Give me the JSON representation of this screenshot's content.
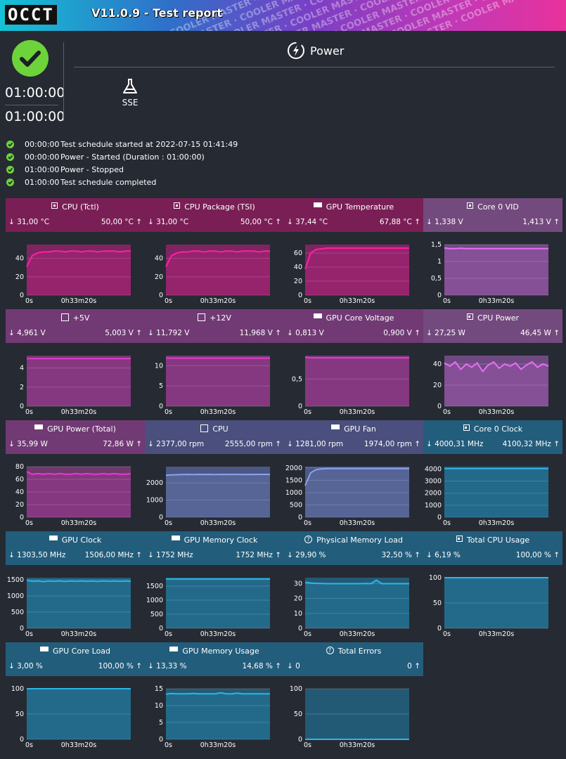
{
  "header": {
    "logo": "OCCT",
    "version": "V11.0.9 - Test report",
    "watermark": "COOLER MASTER"
  },
  "summary": {
    "elapsed_time": "01:00:00",
    "total_time": "01:00:00",
    "test_name": "Power",
    "instruction_set": "SSE",
    "status_color": "#6cd33a"
  },
  "log": [
    {
      "time": "00:00:00",
      "message": "Test schedule started at 2022-07-15 01:41:49"
    },
    {
      "time": "00:00:00",
      "message": "Power - Started (Duration : 01:00:00)"
    },
    {
      "time": "01:00:00",
      "message": "Power - Stopped"
    },
    {
      "time": "01:00:00",
      "message": "Test schedule completed"
    }
  ],
  "colors": {
    "magenta_header": "#7a1f55",
    "magenta_values": "#6e1c4f",
    "magenta_chart": "#7e2561",
    "magenta_line": "#ff1fa8",
    "violet_header": "#734a7e",
    "violet_values": "#6b4377",
    "violet_chart": "#6f4a82",
    "violet_line": "#e86ff5",
    "purple_header": "#713a74",
    "purple_chart": "#71386f",
    "purple_line": "#e33bcf",
    "slate_header": "#4a4f7d",
    "slate_chart": "#4c5784",
    "slate_line": "#8aa3ea",
    "teal_header": "#235d7c",
    "teal_chart": "#225a76",
    "teal_line": "#2ab6e8"
  },
  "sensors": [
    {
      "name": "CPU (Tctl)",
      "icon": "cpu-icon",
      "min": "31,00 °C",
      "max": "50,00 °C",
      "theme": "magenta",
      "chart_data": {
        "type": "line",
        "xlabel": "time",
        "x_ticks": [
          "0s",
          "0h33m20s"
        ],
        "y_ticks": [
          "0",
          "20",
          "40"
        ],
        "ylim": [
          0,
          55
        ],
        "series": [
          {
            "name": "CPU (Tctl)",
            "values": [
              31,
              43,
              46,
              47,
              47,
              48,
              48,
              47,
              48,
              48,
              47,
              48,
              48,
              47,
              48,
              48,
              48,
              47,
              48,
              48
            ]
          }
        ]
      }
    },
    {
      "name": "CPU Package (TSI)",
      "icon": "cpu-icon",
      "min": "31,00 °C",
      "max": "50,00 °C",
      "theme": "magenta",
      "chart_data": {
        "type": "line",
        "xlabel": "time",
        "x_ticks": [
          "0s",
          "0h33m20s"
        ],
        "y_ticks": [
          "0",
          "20",
          "40"
        ],
        "ylim": [
          0,
          55
        ],
        "series": [
          {
            "name": "CPU Package (TSI)",
            "values": [
              31,
              43,
              46,
              47,
              47,
              48,
              48,
              47,
              48,
              48,
              47,
              48,
              48,
              47,
              48,
              48,
              48,
              47,
              48,
              48
            ]
          }
        ]
      }
    },
    {
      "name": "GPU Temperature",
      "icon": "gpu-icon",
      "min": "37,44 °C",
      "max": "67,88 °C",
      "theme": "magenta",
      "chart_data": {
        "type": "line",
        "xlabel": "time",
        "x_ticks": [
          "0s",
          "0h33m20s"
        ],
        "y_ticks": [
          "0",
          "20",
          "40",
          "60"
        ],
        "ylim": [
          0,
          72
        ],
        "series": [
          {
            "name": "GPU Temperature",
            "values": [
              37,
              60,
              65,
              66,
              67,
              67,
              67,
              67,
              67,
              67,
              67,
              67,
              67,
              67,
              67,
              67,
              67,
              67,
              67,
              67
            ]
          }
        ]
      }
    },
    {
      "name": "Core 0 VID",
      "icon": "cpu-icon",
      "min": "1,338 V",
      "max": "1,413 V",
      "theme": "violet",
      "chart_data": {
        "type": "line",
        "xlabel": "time",
        "x_ticks": [
          "0s",
          "0h33m20s"
        ],
        "y_ticks": [
          "0",
          "0,5",
          "1",
          "1,5"
        ],
        "ylim": [
          0,
          1.5
        ],
        "series": [
          {
            "name": "Core 0 VID",
            "values": [
              1.4,
              1.38,
              1.38,
              1.39,
              1.38,
              1.38,
              1.38,
              1.38,
              1.38,
              1.38,
              1.38,
              1.38,
              1.38,
              1.38,
              1.38,
              1.38,
              1.38,
              1.38,
              1.38,
              1.38
            ]
          }
        ]
      }
    },
    {
      "name": "+5V",
      "icon": "chip-icon",
      "min": "4,961 V",
      "max": "5,003 V",
      "theme": "purple",
      "chart_data": {
        "type": "line",
        "xlabel": "time",
        "x_ticks": [
          "0s",
          "0h33m20s"
        ],
        "y_ticks": [
          "0",
          "2",
          "4"
        ],
        "ylim": [
          0,
          5.3
        ],
        "series": [
          {
            "name": "+5V",
            "values": [
              4.99,
              4.98,
              4.98,
              4.98,
              4.98,
              4.98,
              4.98,
              4.98,
              4.98,
              4.98,
              4.98,
              4.98,
              4.98,
              4.98,
              4.98,
              4.98,
              4.98,
              4.98,
              4.98,
              4.98
            ]
          }
        ]
      }
    },
    {
      "name": "+12V",
      "icon": "chip-icon",
      "min": "11,792 V",
      "max": "11,968 V",
      "theme": "purple",
      "chart_data": {
        "type": "line",
        "xlabel": "time",
        "x_ticks": [
          "0s",
          "0h33m20s"
        ],
        "y_ticks": [
          "0",
          "5",
          "10"
        ],
        "ylim": [
          0,
          12.5
        ],
        "series": [
          {
            "name": "+12V",
            "values": [
              11.9,
              11.88,
              11.88,
              11.88,
              11.88,
              11.88,
              11.88,
              11.88,
              11.88,
              11.88,
              11.88,
              11.88,
              11.88,
              11.88,
              11.88,
              11.88,
              11.88,
              11.88,
              11.88,
              11.88
            ]
          }
        ]
      }
    },
    {
      "name": "GPU Core Voltage",
      "icon": "gpu-icon",
      "min": "0,813 V",
      "max": "0,900 V",
      "theme": "purple",
      "chart_data": {
        "type": "line",
        "xlabel": "time",
        "x_ticks": [
          "0s",
          "0h33m20s"
        ],
        "y_ticks": [
          "0",
          "0,5"
        ],
        "ylim": [
          0,
          0.93
        ],
        "series": [
          {
            "name": "GPU Core Voltage",
            "values": [
              0.9,
              0.89,
              0.89,
              0.89,
              0.89,
              0.89,
              0.89,
              0.89,
              0.89,
              0.89,
              0.89,
              0.89,
              0.89,
              0.89,
              0.89,
              0.89,
              0.89,
              0.89,
              0.89,
              0.89
            ]
          }
        ]
      }
    },
    {
      "name": "CPU Power",
      "icon": "cpu-icon",
      "min": "27,25 W",
      "max": "46,45 W",
      "theme": "violet",
      "chart_data": {
        "type": "line",
        "xlabel": "time",
        "x_ticks": [
          "0s",
          "0h33m20s"
        ],
        "y_ticks": [
          "0",
          "20",
          "40"
        ],
        "ylim": [
          0,
          48
        ],
        "series": [
          {
            "name": "CPU Power",
            "values": [
              41,
              38,
              42,
              35,
              40,
              37,
              41,
              33,
              39,
              42,
              36,
              40,
              38,
              41,
              35,
              39,
              42,
              37,
              40,
              38
            ]
          }
        ]
      }
    },
    {
      "name": "GPU Power (Total)",
      "icon": "gpu-icon",
      "min": "35,99 W",
      "max": "72,86 W",
      "theme": "purple",
      "chart_data": {
        "type": "line",
        "xlabel": "time",
        "x_ticks": [
          "0s",
          "0h33m20s"
        ],
        "y_ticks": [
          "0",
          "20",
          "40",
          "60",
          "80"
        ],
        "ylim": [
          0,
          80
        ],
        "series": [
          {
            "name": "GPU Power (Total)",
            "values": [
              72,
              68,
              69,
              68,
              69,
              68,
              69,
              68,
              68,
              69,
              68,
              69,
              68,
              68,
              69,
              68,
              69,
              68,
              68,
              69
            ]
          }
        ]
      }
    },
    {
      "name": "CPU",
      "icon": "chip-icon",
      "min": "2377,00 rpm",
      "max": "2555,00 rpm",
      "theme": "slate",
      "chart_data": {
        "type": "line",
        "xlabel": "time",
        "x_ticks": [
          "0s",
          "0h33m20s"
        ],
        "y_ticks": [
          "0",
          "1000",
          "2000"
        ],
        "ylim": [
          0,
          2950
        ],
        "series": [
          {
            "name": "CPU",
            "values": [
              2450,
              2470,
              2480,
              2490,
              2500,
              2490,
              2500,
              2495,
              2500,
              2490,
              2500,
              2495,
              2500,
              2500,
              2490,
              2500,
              2495,
              2500,
              2500,
              2500
            ]
          }
        ]
      }
    },
    {
      "name": "GPU Fan",
      "icon": "gpu-icon",
      "min": "1281,00 rpm",
      "max": "1974,00 rpm",
      "theme": "slate",
      "chart_data": {
        "type": "line",
        "xlabel": "time",
        "x_ticks": [
          "0s",
          "0h33m20s"
        ],
        "y_ticks": [
          "0",
          "500",
          "1000",
          "1500",
          "2000"
        ],
        "ylim": [
          0,
          2050
        ],
        "series": [
          {
            "name": "GPU Fan",
            "values": [
              1281,
              1800,
              1930,
              1960,
              1970,
              1972,
              1973,
              1974,
              1974,
              1974,
              1974,
              1974,
              1974,
              1974,
              1974,
              1974,
              1974,
              1974,
              1974,
              1974
            ]
          }
        ]
      }
    },
    {
      "name": "Core 0 Clock",
      "icon": "cpu-icon",
      "min": "4000,31 MHz",
      "max": "4100,32 MHz",
      "theme": "teal",
      "chart_data": {
        "type": "line",
        "xlabel": "time",
        "x_ticks": [
          "0s",
          "0h33m20s"
        ],
        "y_ticks": [
          "0",
          "1000",
          "2000",
          "3000",
          "4000"
        ],
        "ylim": [
          0,
          4200
        ],
        "series": [
          {
            "name": "Core 0 Clock",
            "values": [
              4050,
              4050,
              4050,
              4050,
              4050,
              4050,
              4050,
              4050,
              4050,
              4050,
              4050,
              4050,
              4050,
              4050,
              4050,
              4050,
              4050,
              4050,
              4050,
              4050
            ]
          }
        ]
      }
    },
    {
      "name": "GPU Clock",
      "icon": "gpu-icon",
      "min": "1303,50 MHz",
      "max": "1506,00 MHz",
      "theme": "teal",
      "chart_data": {
        "type": "line",
        "xlabel": "time",
        "x_ticks": [
          "0s",
          "0h33m20s"
        ],
        "y_ticks": [
          "0",
          "500",
          "1000",
          "1500"
        ],
        "ylim": [
          0,
          1560
        ],
        "series": [
          {
            "name": "GPU Clock",
            "values": [
              1480,
              1450,
              1460,
              1440,
              1455,
              1450,
              1460,
              1445,
              1455,
              1450,
              1460,
              1450,
              1455,
              1445,
              1460,
              1450,
              1455,
              1450,
              1455,
              1450
            ]
          }
        ]
      }
    },
    {
      "name": "GPU Memory Clock",
      "icon": "gpu-icon",
      "min": "1752 MHz",
      "max": "1752 MHz",
      "theme": "teal",
      "chart_data": {
        "type": "line",
        "xlabel": "time",
        "x_ticks": [
          "0s",
          "0h33m20s"
        ],
        "y_ticks": [
          "0",
          "500",
          "1000",
          "1500"
        ],
        "ylim": [
          0,
          1800
        ],
        "series": [
          {
            "name": "GPU Memory Clock",
            "values": [
              1752,
              1752,
              1752,
              1752,
              1752,
              1752,
              1752,
              1752,
              1752,
              1752,
              1752,
              1752,
              1752,
              1752,
              1752,
              1752,
              1752,
              1752,
              1752,
              1752
            ]
          }
        ]
      }
    },
    {
      "name": "Physical Memory Load",
      "icon": "question-icon",
      "min": "29,90 %",
      "max": "32,50 %",
      "theme": "teal",
      "chart_data": {
        "type": "line",
        "xlabel": "time",
        "x_ticks": [
          "0s",
          "0h33m20s"
        ],
        "y_ticks": [
          "0",
          "10",
          "20",
          "30"
        ],
        "ylim": [
          0,
          34
        ],
        "series": [
          {
            "name": "Physical Memory Load",
            "values": [
              31,
              30.4,
              30.2,
              30.1,
              30.0,
              30.0,
              30.0,
              30.0,
              30.0,
              30.0,
              30.0,
              30.1,
              30.0,
              32.3,
              30.0,
              30.0,
              30.0,
              30.0,
              30.0,
              30.0
            ]
          }
        ]
      }
    },
    {
      "name": "Total CPU Usage",
      "icon": "cpu-icon",
      "min": "6,19 %",
      "max": "100,00 %",
      "theme": "teal",
      "chart_data": {
        "type": "line",
        "xlabel": "time",
        "x_ticks": [
          "0s",
          "0h33m20s"
        ],
        "y_ticks": [
          "0",
          "50",
          "100"
        ],
        "ylim": [
          0,
          100
        ],
        "series": [
          {
            "name": "Total CPU Usage",
            "values": [
              100,
              100,
              100,
              100,
              100,
              100,
              100,
              100,
              100,
              100,
              100,
              100,
              100,
              100,
              100,
              100,
              100,
              100,
              100,
              100
            ]
          }
        ]
      }
    },
    {
      "name": "GPU Core Load",
      "icon": "gpu-icon",
      "min": "3,00 %",
      "max": "100,00 %",
      "theme": "teal",
      "chart_data": {
        "type": "line",
        "xlabel": "time",
        "x_ticks": [
          "0s",
          "0h33m20s"
        ],
        "y_ticks": [
          "0",
          "50",
          "100"
        ],
        "ylim": [
          0,
          100
        ],
        "series": [
          {
            "name": "GPU Core Load",
            "values": [
              100,
              100,
              100,
              100,
              100,
              100,
              100,
              100,
              100,
              100,
              100,
              100,
              100,
              100,
              100,
              100,
              100,
              100,
              100,
              100
            ]
          }
        ]
      }
    },
    {
      "name": "GPU Memory Usage",
      "icon": "gpu-icon",
      "min": "13,33 %",
      "max": "14,68 %",
      "theme": "teal",
      "chart_data": {
        "type": "line",
        "xlabel": "time",
        "x_ticks": [
          "0s",
          "0h33m20s"
        ],
        "y_ticks": [
          "0",
          "5",
          "10",
          "15"
        ],
        "ylim": [
          0,
          15
        ],
        "series": [
          {
            "name": "GPU Memory Usage",
            "values": [
              13.4,
              13.6,
              13.5,
              13.5,
              13.5,
              13.6,
              13.5,
              13.5,
              13.5,
              13.5,
              13.8,
              13.5,
              13.5,
              13.7,
              13.5,
              13.5,
              13.5,
              13.5,
              13.5,
              13.5
            ]
          }
        ]
      }
    },
    {
      "name": "Total Errors",
      "icon": "question-icon",
      "min": "0",
      "max": "0",
      "theme": "teal",
      "chart_data": {
        "type": "line",
        "xlabel": "time",
        "x_ticks": [
          "0s",
          "0h33m20s"
        ],
        "y_ticks": [
          "0",
          "50",
          "100"
        ],
        "ylim": [
          0,
          100
        ],
        "series": [
          {
            "name": "Total Errors",
            "values": [
              0,
              0,
              0,
              0,
              0,
              0,
              0,
              0,
              0,
              0,
              0,
              0,
              0,
              0,
              0,
              0,
              0,
              0,
              0,
              0
            ]
          }
        ]
      }
    }
  ]
}
